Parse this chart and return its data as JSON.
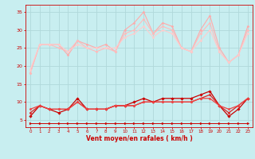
{
  "background_color": "#c8eef0",
  "grid_color": "#b0d8da",
  "xlabel": "Vent moyen/en rafales ( km/h )",
  "xlabel_color": "#cc0000",
  "tick_color": "#cc0000",
  "xlim": [
    -0.5,
    23.5
  ],
  "ylim": [
    3,
    37
  ],
  "yticks": [
    5,
    10,
    15,
    20,
    25,
    30,
    35
  ],
  "xticks": [
    0,
    1,
    2,
    3,
    4,
    5,
    6,
    7,
    8,
    9,
    10,
    11,
    12,
    13,
    14,
    15,
    16,
    17,
    18,
    19,
    20,
    21,
    22,
    23
  ],
  "series": [
    {
      "x": [
        0,
        1,
        2,
        3,
        4,
        5,
        6,
        7,
        8,
        9,
        10,
        11,
        12,
        13,
        14,
        15,
        16,
        17,
        18,
        19,
        20,
        21,
        22,
        23
      ],
      "y": [
        18,
        26,
        26,
        26,
        23,
        27,
        26,
        25,
        26,
        24,
        30,
        32,
        35,
        29,
        32,
        31,
        25,
        24,
        30,
        34,
        25,
        21,
        23,
        31
      ],
      "color": "#ffaaaa",
      "lw": 0.8,
      "marker": "D",
      "ms": 1.5
    },
    {
      "x": [
        0,
        1,
        2,
        3,
        4,
        5,
        6,
        7,
        8,
        9,
        10,
        11,
        12,
        13,
        14,
        15,
        16,
        17,
        18,
        19,
        20,
        21,
        22,
        23
      ],
      "y": [
        18,
        26,
        26,
        25,
        24,
        27,
        25,
        24,
        25,
        24,
        29,
        30,
        33,
        29,
        31,
        30,
        25,
        24,
        29,
        32,
        24,
        21,
        23,
        30
      ],
      "color": "#ffbbbb",
      "lw": 0.8,
      "marker": "D",
      "ms": 1.5
    },
    {
      "x": [
        0,
        1,
        2,
        3,
        4,
        5,
        6,
        7,
        8,
        9,
        10,
        11,
        12,
        13,
        14,
        15,
        16,
        17,
        18,
        19,
        20,
        21,
        22,
        23
      ],
      "y": [
        19,
        26,
        26,
        26,
        24,
        26,
        25,
        25,
        25,
        25,
        28,
        29,
        31,
        28,
        30,
        29,
        25,
        24,
        27,
        30,
        24,
        21,
        23,
        29
      ],
      "color": "#ffcccc",
      "lw": 0.8,
      "marker": "D",
      "ms": 1.5
    },
    {
      "x": [
        0,
        1,
        2,
        3,
        4,
        5,
        6,
        7,
        8,
        9,
        10,
        11,
        12,
        13,
        14,
        15,
        16,
        17,
        18,
        19,
        20,
        21,
        22,
        23
      ],
      "y": [
        6,
        9,
        8,
        7,
        8,
        11,
        8,
        8,
        8,
        9,
        9,
        10,
        11,
        10,
        11,
        11,
        11,
        11,
        12,
        13,
        9,
        6,
        8,
        11
      ],
      "color": "#cc0000",
      "lw": 0.9,
      "marker": "D",
      "ms": 1.8
    },
    {
      "x": [
        0,
        1,
        2,
        3,
        4,
        5,
        6,
        7,
        8,
        9,
        10,
        11,
        12,
        13,
        14,
        15,
        16,
        17,
        18,
        19,
        20,
        21,
        22,
        23
      ],
      "y": [
        7,
        9,
        8,
        8,
        8,
        10,
        8,
        8,
        8,
        9,
        9,
        9,
        10,
        10,
        10,
        10,
        10,
        10,
        11,
        12,
        9,
        7,
        9,
        11
      ],
      "color": "#dd2222",
      "lw": 0.9,
      "marker": "D",
      "ms": 1.5
    },
    {
      "x": [
        0,
        1,
        2,
        3,
        4,
        5,
        6,
        7,
        8,
        9,
        10,
        11,
        12,
        13,
        14,
        15,
        16,
        17,
        18,
        19,
        20,
        21,
        22,
        23
      ],
      "y": [
        8,
        9,
        8,
        8,
        8,
        10,
        8,
        8,
        8,
        9,
        9,
        9,
        10,
        10,
        10,
        10,
        10,
        10,
        11,
        11,
        9,
        8,
        9,
        11
      ],
      "color": "#ee4444",
      "lw": 0.9,
      "marker": "D",
      "ms": 1.5
    },
    {
      "x": [
        0,
        1,
        2,
        3,
        4,
        5,
        6,
        7,
        8,
        9,
        10,
        11,
        12,
        13,
        14,
        15,
        16,
        17,
        18,
        19,
        20,
        21,
        22,
        23
      ],
      "y": [
        4,
        4,
        4,
        4,
        4,
        4,
        4,
        4,
        4,
        4,
        4,
        4,
        4,
        4,
        4,
        4,
        4,
        4,
        4,
        4,
        4,
        4,
        4,
        4
      ],
      "color": "#cc0000",
      "lw": 0.7,
      "marker": ">",
      "ms": 2.0
    }
  ]
}
